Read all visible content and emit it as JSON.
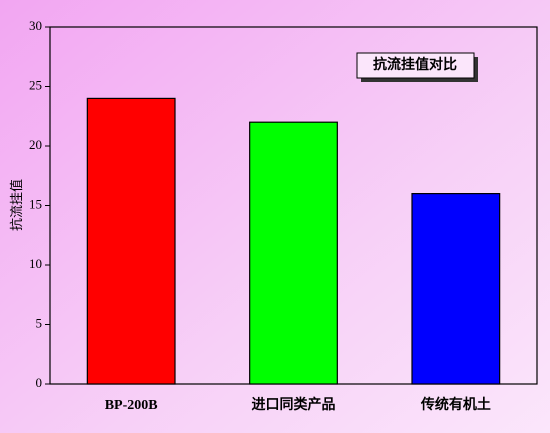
{
  "chart_data": {
    "type": "bar",
    "title": "抗流挂值对比",
    "ylabel": "抗流挂值",
    "categories": [
      "BP-200B",
      "进口同类产品",
      "传统有机土"
    ],
    "values": [
      24,
      22,
      16
    ],
    "colors": [
      "#ff0000",
      "#00ff00",
      "#0000ff"
    ],
    "ylim": [
      0,
      30
    ],
    "yticks": [
      0,
      5,
      10,
      15,
      20,
      25,
      30
    ],
    "grid": false
  }
}
